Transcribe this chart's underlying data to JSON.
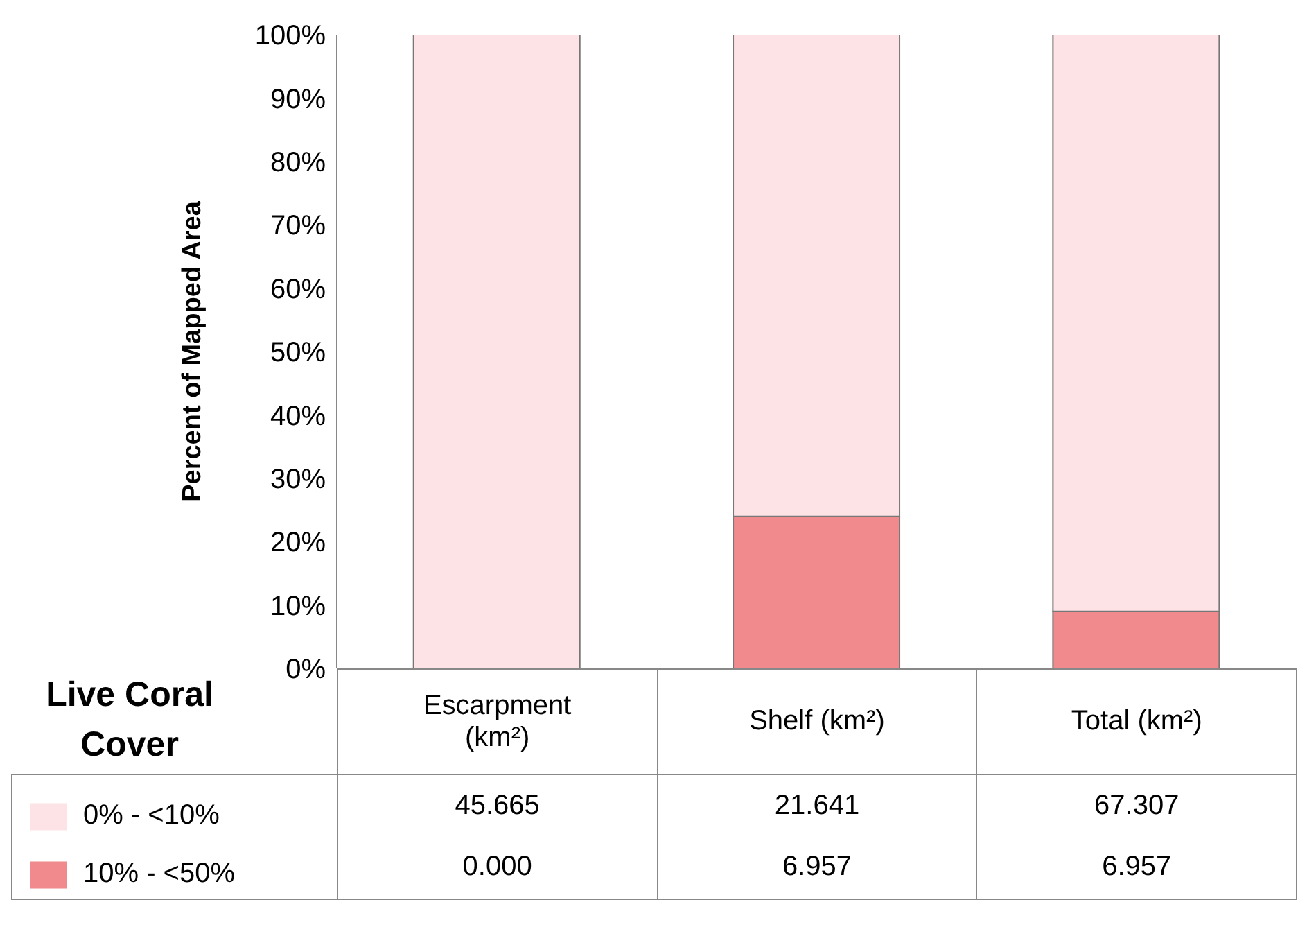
{
  "chart_data": {
    "type": "bar",
    "stacked": true,
    "ylabel": "Percent of Mapped Area",
    "legend_title": "Live Coral Cover",
    "legend": "bottom",
    "categories": [
      "Escarpment (km²)",
      "Shelf (km²)",
      "Total (km²)"
    ],
    "series": [
      {
        "name": "10% - <50%",
        "color": "#f08a8c",
        "values": [
          0,
          24,
          9
        ]
      },
      {
        "name": "0% - <10%",
        "color": "#fde3e6",
        "values": [
          100,
          76,
          91
        ]
      }
    ],
    "annotations": [
      "45.665",
      "21.641",
      "67.307",
      "0.000",
      "6.957",
      "6.957"
    ],
    "ylim": [
      0,
      100
    ],
    "yticks": [
      {
        "value": 0,
        "label": "0%"
      },
      {
        "value": 10,
        "label": "10%"
      },
      {
        "value": 20,
        "label": "20%"
      },
      {
        "value": 30,
        "label": "30%"
      },
      {
        "value": 40,
        "label": "40%"
      },
      {
        "value": 50,
        "label": "50%"
      },
      {
        "value": 60,
        "label": "60%"
      },
      {
        "value": 70,
        "label": "70%"
      },
      {
        "value": 80,
        "label": "80%"
      },
      {
        "value": 90,
        "label": "90%"
      },
      {
        "value": 100,
        "label": "100%"
      }
    ]
  }
}
